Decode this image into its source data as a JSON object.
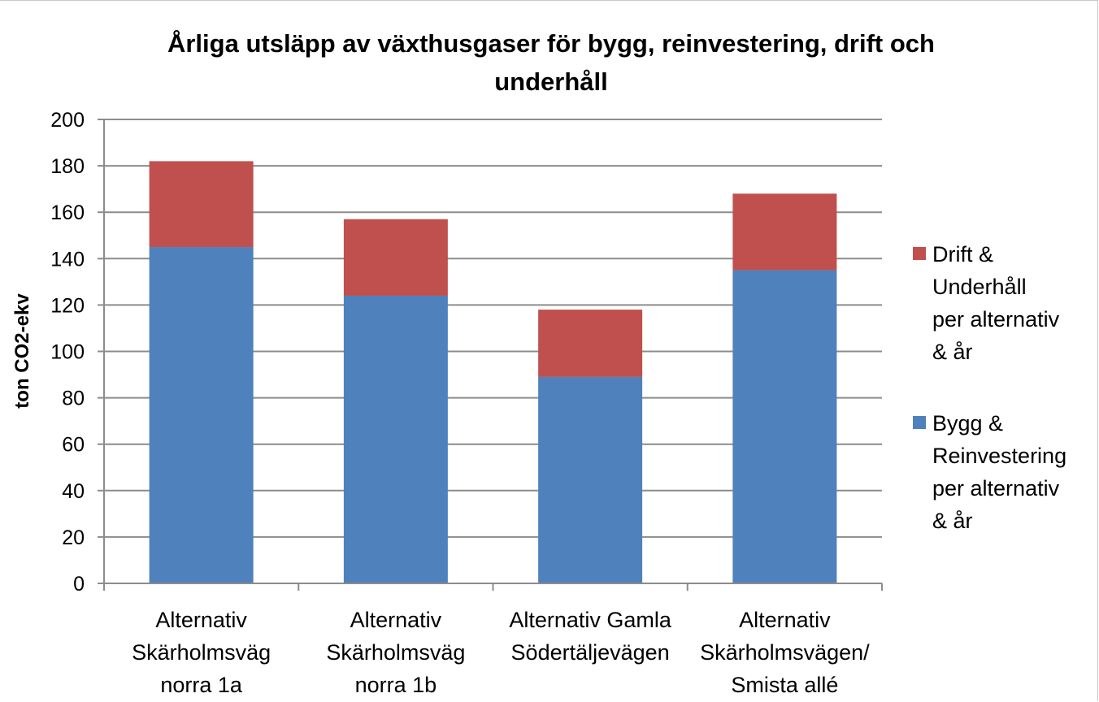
{
  "chart_data": {
    "type": "bar",
    "stacked": true,
    "title": "Årliga utsläpp av växthusgaser för bygg, reinvestering, drift och underhåll",
    "title_lines": [
      "Årliga utsläpp av växthusgaser för bygg, reinvestering, drift och",
      "underhåll"
    ],
    "xlabel": "",
    "ylabel": "ton CO2-ekv",
    "ylim": [
      0,
      200
    ],
    "y_ticks": [
      0,
      20,
      40,
      60,
      80,
      100,
      120,
      140,
      160,
      180,
      200
    ],
    "grid": true,
    "legend_position": "right",
    "categories": [
      "Alternativ Skärholmsväg norra 1a",
      "Alternativ Skärholmsväg norra 1b",
      "Alternativ Gamla Södertäljevägen",
      "Alternativ Skärholmsvägen/ Smista allé"
    ],
    "category_lines": [
      [
        "Alternativ",
        "Skärholmsväg",
        "norra 1a"
      ],
      [
        "Alternativ",
        "Skärholmsväg",
        "norra 1b"
      ],
      [
        "Alternativ Gamla",
        "Södertäljevägen"
      ],
      [
        "Alternativ",
        "Skärholmsvägen/",
        "Smista allé"
      ]
    ],
    "series": [
      {
        "name": "Bygg & Reinvestering per alternativ & år",
        "legend_lines": [
          "Bygg &",
          "Reinvestering",
          "per alternativ",
          "& år"
        ],
        "color": "#4f81bd",
        "values": [
          145,
          124,
          89,
          135
        ]
      },
      {
        "name": "Drift & Underhåll per alternativ & år",
        "legend_lines": [
          "Drift &",
          "Underhåll",
          "per alternativ",
          "& år"
        ],
        "color": "#c0504d",
        "values": [
          37,
          33,
          29,
          33
        ]
      }
    ]
  }
}
